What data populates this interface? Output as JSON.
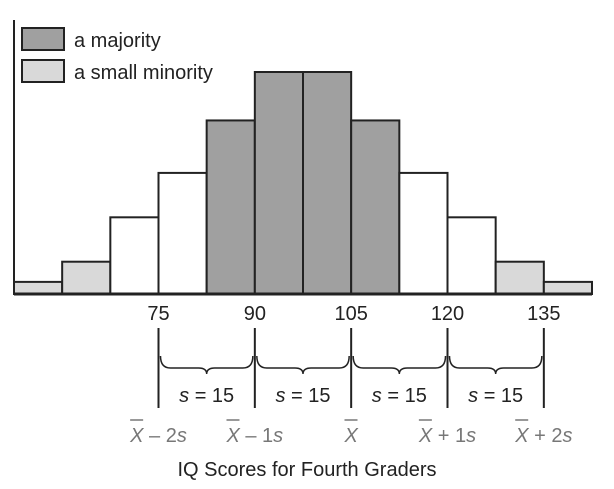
{
  "chart_data": {
    "type": "bar",
    "title": "",
    "xlabel": "IQ Scores for Fourth Graders",
    "ylabel": "",
    "bin_width": 7.5,
    "bins": [
      {
        "x0": 52.5,
        "x1": 60.0,
        "value": 0.6,
        "group": "small_minority"
      },
      {
        "x0": 60.0,
        "x1": 67.5,
        "value": 1.6,
        "group": "small_minority"
      },
      {
        "x0": 67.5,
        "x1": 75.0,
        "value": 3.8,
        "group": "other"
      },
      {
        "x0": 75.0,
        "x1": 82.5,
        "value": 6.0,
        "group": "other"
      },
      {
        "x0": 82.5,
        "x1": 90.0,
        "value": 8.6,
        "group": "majority"
      },
      {
        "x0": 90.0,
        "x1": 97.5,
        "value": 11.0,
        "group": "majority"
      },
      {
        "x0": 97.5,
        "x1": 105.0,
        "value": 11.0,
        "group": "majority"
      },
      {
        "x0": 105.0,
        "x1": 112.5,
        "value": 8.6,
        "group": "majority"
      },
      {
        "x0": 112.5,
        "x1": 120.0,
        "value": 6.0,
        "group": "other"
      },
      {
        "x0": 120.0,
        "x1": 127.5,
        "value": 3.8,
        "group": "other"
      },
      {
        "x0": 127.5,
        "x1": 135.0,
        "value": 1.6,
        "group": "small_minority"
      },
      {
        "x0": 135.0,
        "x1": 142.5,
        "value": 0.6,
        "group": "small_minority"
      }
    ],
    "xticks": [
      75,
      90,
      105,
      120,
      135
    ],
    "xlim": [
      52.5,
      142.5
    ],
    "ylim": [
      0,
      12
    ],
    "grid": false,
    "legend": {
      "placement": "top-left",
      "entries": [
        {
          "name": "a majority",
          "color": "#a0a0a0"
        },
        {
          "name": "a small minority",
          "color": "#d9d9d9"
        }
      ]
    },
    "colors": {
      "majority": "#a0a0a0",
      "small_minority": "#d9d9d9",
      "other": "#ffffff",
      "stroke": "#222222"
    },
    "sd_annotation": {
      "brace_ranges": [
        [
          75,
          90
        ],
        [
          90,
          105
        ],
        [
          105,
          120
        ],
        [
          120,
          135
        ]
      ],
      "s_label_var": "s",
      "s_label_value": " = 15",
      "stat_labels": [
        {
          "value": 75,
          "pre": "X",
          "mid": " – 2",
          "post": "s"
        },
        {
          "value": 90,
          "pre": "X",
          "mid": " – 1",
          "post": "s"
        },
        {
          "value": 105,
          "pre": "X",
          "mid": "",
          "post": ""
        },
        {
          "value": 120,
          "pre": "X",
          "mid": " + 1",
          "post": "s"
        },
        {
          "value": 135,
          "pre": "X",
          "mid": " + 2",
          "post": "s"
        }
      ]
    }
  }
}
